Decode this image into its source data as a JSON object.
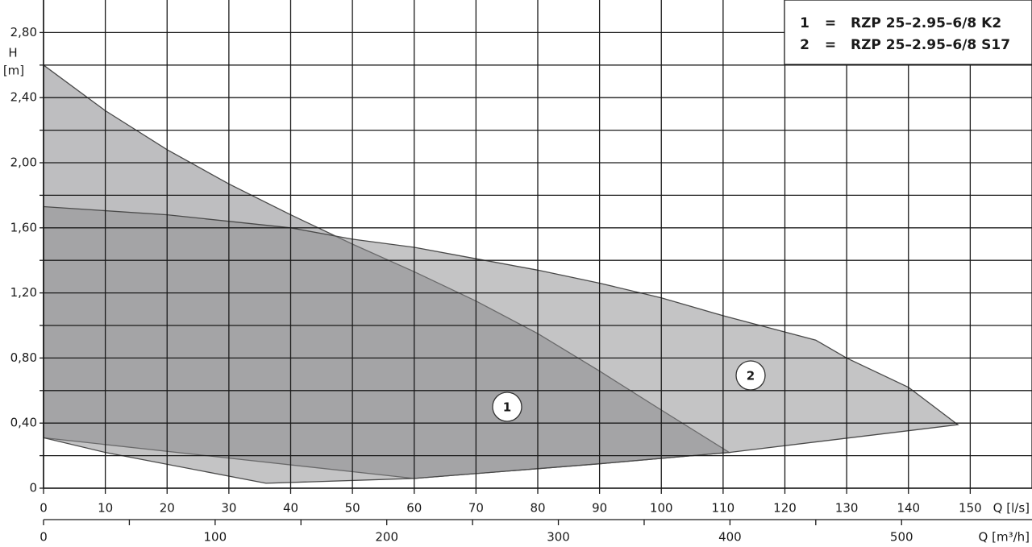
{
  "chart_data": {
    "type": "area",
    "y_label_line1": "H",
    "y_label_line2": "[m]",
    "x_label": "Q [l/s]",
    "x2_label": "Q [m³/h]",
    "legend_separator": "=",
    "xlim": [
      0,
      160
    ],
    "xticks": [
      0,
      10,
      20,
      30,
      40,
      50,
      60,
      70,
      80,
      90,
      100,
      110,
      120,
      130,
      140,
      150
    ],
    "x_grid": [
      0,
      10,
      20,
      30,
      40,
      50,
      60,
      70,
      80,
      90,
      100,
      110,
      120,
      130,
      140,
      150,
      160
    ],
    "x2lim": [
      0,
      576
    ],
    "x2ticks": [
      0,
      100,
      200,
      300,
      400,
      500
    ],
    "x2_minor_ticks": [
      50,
      150,
      250,
      350,
      450
    ],
    "ylim": [
      0,
      3.0
    ],
    "yticks": [
      0,
      {
        "value": 0.4,
        "label": "0,40"
      },
      {
        "value": 0.8,
        "label": "0,80"
      },
      {
        "value": 1.2,
        "label": "1,20"
      },
      {
        "value": 1.6,
        "label": "1,60"
      },
      {
        "value": 2.0,
        "label": "2,00"
      },
      {
        "value": 2.4,
        "label": "2,40"
      },
      {
        "value": 2.8,
        "label": "2,80"
      }
    ],
    "y_minor_ticks": [
      0.2,
      0.6,
      1.0,
      1.4,
      1.8,
      2.2,
      2.6
    ],
    "grid": true,
    "series": [
      {
        "id": "1",
        "name": "RZP 25–2.95–6/8 K2",
        "color": "#7d7d82",
        "x": [
          0,
          10,
          20,
          30,
          40,
          50,
          60,
          70,
          80,
          90,
          100,
          111,
          90,
          60,
          0
        ],
        "values": [
          2.6,
          2.32,
          2.08,
          1.87,
          1.68,
          1.5,
          1.33,
          1.15,
          0.95,
          0.72,
          0.48,
          0.22,
          0.15,
          0.06,
          0.31
        ]
      },
      {
        "id": "2",
        "name": "RZP 25–2.95–6/8 S17",
        "color": "#8a8a8c",
        "x": [
          0,
          20,
          40,
          50,
          60,
          70,
          80,
          90,
          100,
          110,
          120,
          125,
          130,
          140,
          148,
          111,
          90,
          60,
          36,
          10,
          0
        ],
        "values": [
          1.73,
          1.68,
          1.6,
          1.53,
          1.48,
          1.41,
          1.34,
          1.26,
          1.17,
          1.06,
          0.96,
          0.91,
          0.8,
          0.62,
          0.39,
          0.22,
          0.15,
          0.06,
          0.03,
          0.22,
          0.31
        ]
      }
    ]
  }
}
